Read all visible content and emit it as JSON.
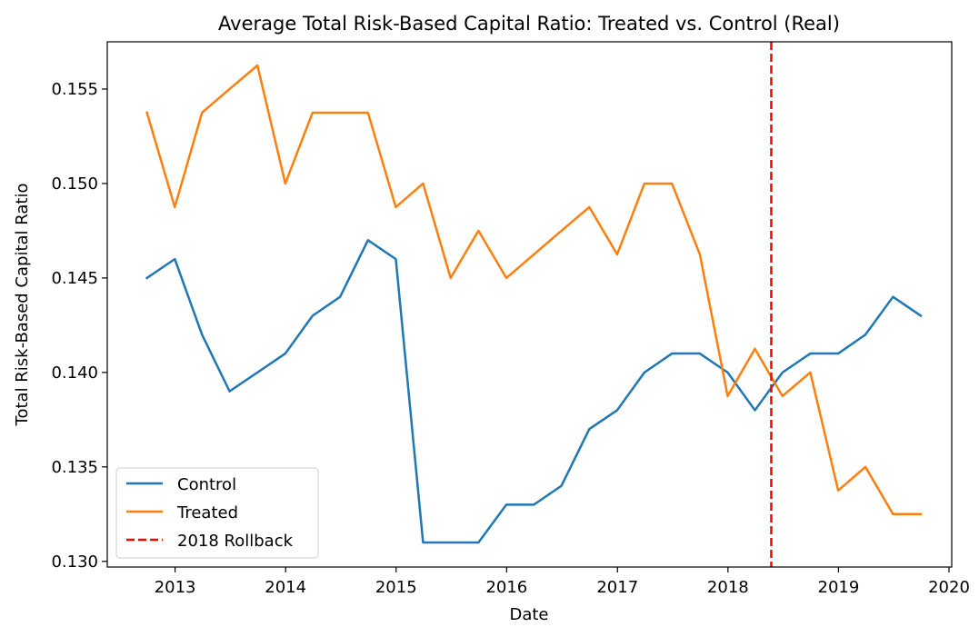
{
  "chart_data": {
    "type": "line",
    "title": "Average Total Risk-Based Capital Ratio: Treated vs. Control (Real)",
    "xlabel": "Date",
    "ylabel": "Total Risk-Based Capital Ratio",
    "xlim": [
      "2012-05-22",
      "2020-01-10"
    ],
    "ylim": [
      0.1297,
      0.1575
    ],
    "x_ticks": [
      "2013",
      "2014",
      "2015",
      "2016",
      "2017",
      "2018",
      "2019",
      "2020"
    ],
    "y_ticks": [
      "0.130",
      "0.135",
      "0.140",
      "0.145",
      "0.150",
      "0.155"
    ],
    "y_tick_values": [
      0.13,
      0.135,
      0.14,
      0.145,
      0.15,
      0.155
    ],
    "x": [
      "2012-09-30",
      "2012-12-31",
      "2013-03-31",
      "2013-06-30",
      "2013-09-30",
      "2013-12-31",
      "2014-03-31",
      "2014-06-30",
      "2014-09-30",
      "2014-12-31",
      "2015-03-31",
      "2015-06-30",
      "2015-09-30",
      "2015-12-31",
      "2016-03-31",
      "2016-06-30",
      "2016-09-30",
      "2016-12-31",
      "2017-03-31",
      "2017-06-30",
      "2017-09-30",
      "2017-12-31",
      "2018-03-31",
      "2018-06-30",
      "2018-09-30",
      "2018-12-31",
      "2019-03-31",
      "2019-06-30",
      "2019-09-30"
    ],
    "series": [
      {
        "name": "Control",
        "color": "#1f77b4",
        "style": "solid",
        "values": [
          0.145,
          0.146,
          0.142,
          0.139,
          0.14,
          0.141,
          0.143,
          0.144,
          0.147,
          0.146,
          0.131,
          0.131,
          0.131,
          0.133,
          0.133,
          0.134,
          0.137,
          0.138,
          0.14,
          0.141,
          0.141,
          0.14,
          0.138,
          0.14,
          0.141,
          0.141,
          0.142,
          0.144,
          0.143
        ]
      },
      {
        "name": "Treated",
        "color": "#ff7f0e",
        "style": "solid",
        "values": [
          0.15375,
          0.14875,
          0.15375,
          0.155,
          0.15625,
          0.15,
          0.15375,
          0.15375,
          0.15375,
          0.14875,
          0.15,
          0.145,
          0.1475,
          0.145,
          0.14625,
          0.1475,
          0.14875,
          0.14625,
          0.15,
          0.15,
          0.14625,
          0.13875,
          0.14125,
          0.13875,
          0.14,
          0.13375,
          0.135,
          0.1325,
          0.1325
        ]
      }
    ],
    "vlines": [
      {
        "name": "2018 Rollback",
        "x": "2018-05-24",
        "color": "#ff0000",
        "style": "dashed"
      }
    ],
    "legend": {
      "position": "lower-left",
      "entries": [
        "Control",
        "Treated",
        "2018 Rollback"
      ]
    },
    "grid": false
  }
}
